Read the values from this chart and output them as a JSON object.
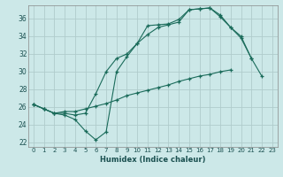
{
  "xlabel": "Humidex (Indice chaleur)",
  "ylabel": "",
  "bg_color": "#cce8e8",
  "line_color": "#1a6b5a",
  "grid_color": "#b0cccc",
  "xlim": [
    -0.5,
    23.5
  ],
  "ylim": [
    21.5,
    37.5
  ],
  "yticks": [
    22,
    24,
    26,
    28,
    30,
    32,
    34,
    36
  ],
  "xticks": [
    0,
    1,
    2,
    3,
    4,
    5,
    6,
    7,
    8,
    9,
    10,
    11,
    12,
    13,
    14,
    15,
    16,
    17,
    18,
    19,
    20,
    21,
    22,
    23
  ],
  "line1_x": [
    0,
    1,
    2,
    3,
    4,
    5,
    6,
    7,
    8,
    9,
    10,
    11,
    12,
    13,
    14,
    15,
    16,
    17,
    18,
    19,
    20,
    21,
    22
  ],
  "line1_y": [
    26.3,
    25.8,
    25.3,
    25.1,
    24.6,
    23.3,
    22.3,
    23.2,
    30.0,
    31.7,
    33.2,
    35.2,
    35.3,
    35.4,
    35.9,
    37.0,
    37.1,
    37.2,
    36.2,
    35.0,
    33.8,
    31.5,
    29.5
  ],
  "line2_x": [
    0,
    1,
    2,
    3,
    4,
    5,
    6,
    7,
    8,
    9,
    10,
    11,
    12,
    13,
    14,
    15,
    16,
    17,
    18,
    19,
    20,
    21
  ],
  "line2_y": [
    26.3,
    25.8,
    25.3,
    25.3,
    25.1,
    25.3,
    27.5,
    30.0,
    31.5,
    32.0,
    33.2,
    34.2,
    35.0,
    35.3,
    35.6,
    37.0,
    37.1,
    37.2,
    36.4,
    35.0,
    34.0,
    31.5
  ],
  "line3_x": [
    0,
    1,
    2,
    3,
    4,
    5,
    6,
    7,
    8,
    9,
    10,
    11,
    12,
    13,
    14,
    15,
    16,
    17,
    18,
    19,
    20,
    21,
    22,
    23
  ],
  "line3_y": [
    26.3,
    25.8,
    25.3,
    25.5,
    25.5,
    25.8,
    26.1,
    26.4,
    26.8,
    27.3,
    27.6,
    27.9,
    28.2,
    28.5,
    28.9,
    29.2,
    29.5,
    29.7,
    30.0,
    30.2,
    null,
    null,
    null,
    null
  ]
}
